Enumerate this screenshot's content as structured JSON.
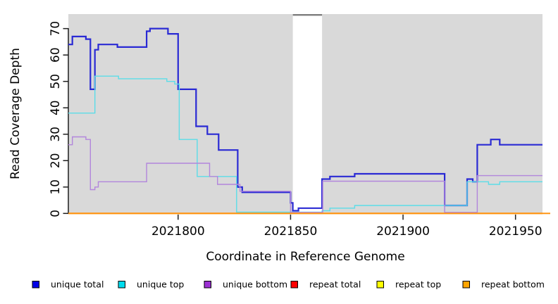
{
  "figure": {
    "background": "#ffffff",
    "panel_background": "#d9d9d9"
  },
  "axes": {
    "xlabel": "Coordinate in Reference Genome",
    "ylabel": "Read Coverage Depth",
    "x_ticks": [
      "2021800",
      "2021850",
      "2021900",
      "2021950"
    ],
    "y_ticks": [
      "0",
      "10",
      "20",
      "30",
      "40",
      "50",
      "60",
      "70"
    ]
  },
  "legend": {
    "items": [
      {
        "label": "unique total",
        "color": "#0000e6"
      },
      {
        "label": "unique top",
        "color": "#00dcee"
      },
      {
        "label": "unique bottom",
        "color": "#9b30d2"
      },
      {
        "label": "repeat total",
        "color": "#ff0000"
      },
      {
        "label": "repeat top",
        "color": "#ffff00"
      },
      {
        "label": "repeat bottom",
        "color": "#ffa500"
      }
    ]
  },
  "chart_data": {
    "type": "line",
    "subtype": "step",
    "title": "",
    "xlabel": "Coordinate in Reference Genome",
    "ylabel": "Read Coverage Depth",
    "xlim": [
      2021751.2,
      2021962
    ],
    "ylim": [
      0,
      75.5
    ],
    "x_tick_values": [
      2021800,
      2021850,
      2021900,
      2021950
    ],
    "y_tick_values": [
      0,
      10,
      20,
      30,
      40,
      50,
      60,
      70
    ],
    "grid": false,
    "legend_position": "bottom",
    "panel_bg": "#d9d9d9",
    "gap_region": {
      "start": 2021851,
      "end": 2021864,
      "fill": "#ffffff",
      "top_border": "#7e7e7e"
    },
    "series": [
      {
        "name": "unique total",
        "color": "#2a2ad4",
        "width": 2.2,
        "points": [
          [
            2021751.2,
            64
          ],
          [
            2021753,
            67
          ],
          [
            2021759,
            66
          ],
          [
            2021761,
            47
          ],
          [
            2021763,
            62
          ],
          [
            2021764.5,
            64
          ],
          [
            2021773,
            63
          ],
          [
            2021786,
            69
          ],
          [
            2021787.5,
            70
          ],
          [
            2021795.5,
            68
          ],
          [
            2021800,
            47
          ],
          [
            2021808,
            33
          ],
          [
            2021813,
            30
          ],
          [
            2021818,
            24
          ],
          [
            2021826.5,
            10
          ],
          [
            2021828.5,
            8
          ],
          [
            2021850,
            4
          ],
          [
            2021851,
            1
          ],
          [
            2021853.5,
            2
          ],
          [
            2021864,
            13
          ],
          [
            2021867.5,
            14
          ],
          [
            2021878.5,
            15
          ],
          [
            2021918.5,
            3
          ],
          [
            2021928.5,
            13
          ],
          [
            2021931,
            12
          ],
          [
            2021933,
            26
          ],
          [
            2021939,
            28
          ],
          [
            2021943,
            26
          ],
          [
            2021962,
            26
          ]
        ]
      },
      {
        "name": "unique top",
        "color": "#5bdde8",
        "width": 1.4,
        "points": [
          [
            2021751.2,
            38
          ],
          [
            2021763,
            52
          ],
          [
            2021773.5,
            51
          ],
          [
            2021795,
            50
          ],
          [
            2021798.5,
            49
          ],
          [
            2021800.5,
            28
          ],
          [
            2021808.5,
            14
          ],
          [
            2021826,
            0.5
          ],
          [
            2021864,
            1
          ],
          [
            2021867.5,
            2
          ],
          [
            2021878.5,
            3
          ],
          [
            2021928.5,
            12
          ],
          [
            2021938,
            11
          ],
          [
            2021943,
            12
          ],
          [
            2021962,
            12
          ]
        ]
      },
      {
        "name": "unique bottom",
        "color": "#b286dc",
        "width": 1.4,
        "points": [
          [
            2021751.2,
            26
          ],
          [
            2021753,
            29
          ],
          [
            2021759,
            28
          ],
          [
            2021761,
            9
          ],
          [
            2021763,
            10
          ],
          [
            2021764.5,
            12
          ],
          [
            2021786,
            19
          ],
          [
            2021814,
            14
          ],
          [
            2021817.5,
            11
          ],
          [
            2021827.5,
            8.4
          ],
          [
            2021850,
            0.4
          ],
          [
            2021864.3,
            12.2
          ],
          [
            2021918.5,
            0.4
          ],
          [
            2021933,
            14.3
          ],
          [
            2021962,
            14.3
          ]
        ]
      },
      {
        "name": "repeat total",
        "color": "#e00000",
        "width": 1.4,
        "points": [
          [
            2021751.2,
            0
          ],
          [
            2021962,
            0
          ]
        ]
      },
      {
        "name": "repeat top",
        "color": "#f5f500",
        "width": 1.4,
        "points": [
          [
            2021751.2,
            0
          ],
          [
            2021962,
            0
          ]
        ]
      },
      {
        "name": "repeat bottom",
        "color": "#ff9514",
        "width": 2,
        "points": [
          [
            2021751.2,
            0
          ],
          [
            2021962,
            0
          ]
        ]
      }
    ]
  }
}
